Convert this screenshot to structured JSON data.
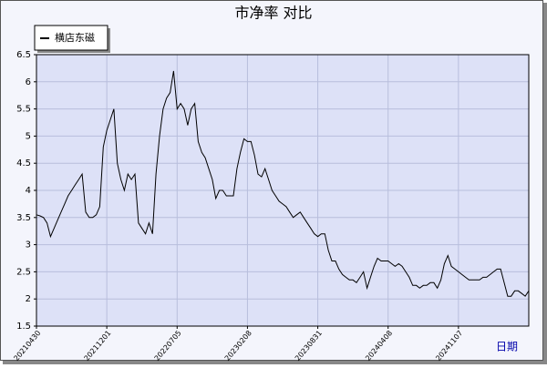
{
  "chart_data": {
    "type": "line",
    "title": "市净率  对比",
    "x_label": "日期",
    "series": [
      {
        "name": "横店东磁",
        "color": "#000000",
        "values": [
          3.55,
          3.53,
          3.5,
          3.4,
          3.15,
          3.3,
          3.45,
          3.6,
          3.75,
          3.9,
          4.0,
          4.1,
          4.2,
          4.3,
          3.6,
          3.5,
          3.5,
          3.55,
          3.7,
          4.8,
          5.1,
          5.3,
          5.5,
          4.5,
          4.2,
          4.0,
          4.3,
          4.2,
          4.3,
          3.4,
          3.3,
          3.2,
          3.4,
          3.2,
          4.3,
          5.0,
          5.5,
          5.7,
          5.8,
          6.2,
          5.5,
          5.6,
          5.5,
          5.2,
          5.5,
          5.6,
          4.9,
          4.7,
          4.6,
          4.4,
          4.2,
          3.85,
          4.0,
          4.0,
          3.9,
          3.9,
          3.9,
          4.4,
          4.7,
          4.95,
          4.9,
          4.9,
          4.65,
          4.3,
          4.25,
          4.4,
          4.2,
          4.0,
          3.9,
          3.8,
          3.75,
          3.7,
          3.6,
          3.5,
          3.55,
          3.6,
          3.5,
          3.4,
          3.3,
          3.2,
          3.15,
          3.2,
          3.2,
          2.9,
          2.7,
          2.7,
          2.55,
          2.45,
          2.4,
          2.35,
          2.35,
          2.3,
          2.4,
          2.5,
          2.2,
          2.4,
          2.6,
          2.75,
          2.7,
          2.7,
          2.7,
          2.65,
          2.6,
          2.65,
          2.6,
          2.5,
          2.4,
          2.25,
          2.25,
          2.2,
          2.25,
          2.25,
          2.3,
          2.3,
          2.2,
          2.35,
          2.65,
          2.8,
          2.6,
          2.55,
          2.5,
          2.45,
          2.4,
          2.35,
          2.35,
          2.35,
          2.35,
          2.4,
          2.4,
          2.45,
          2.5,
          2.55,
          2.55,
          2.3,
          2.05,
          2.05,
          2.15,
          2.15,
          2.1,
          2.05,
          2.15
        ]
      }
    ],
    "xlim": [
      0,
      140
    ],
    "xticks": [
      {
        "value": 0,
        "label": "20210430"
      },
      {
        "value": 20,
        "label": "20211201"
      },
      {
        "value": 40,
        "label": "20220705"
      },
      {
        "value": 60,
        "label": "20230208"
      },
      {
        "value": 80,
        "label": "20230831"
      },
      {
        "value": 100,
        "label": "20240408"
      },
      {
        "value": 120,
        "label": "20241107"
      }
    ],
    "ylim": [
      1.5,
      6.5
    ],
    "yticks": [
      1.5,
      2.0,
      2.5,
      3.0,
      3.5,
      4.0,
      4.5,
      5.0,
      5.5,
      6.0,
      6.5
    ],
    "grid": true,
    "legend": "top-left"
  }
}
